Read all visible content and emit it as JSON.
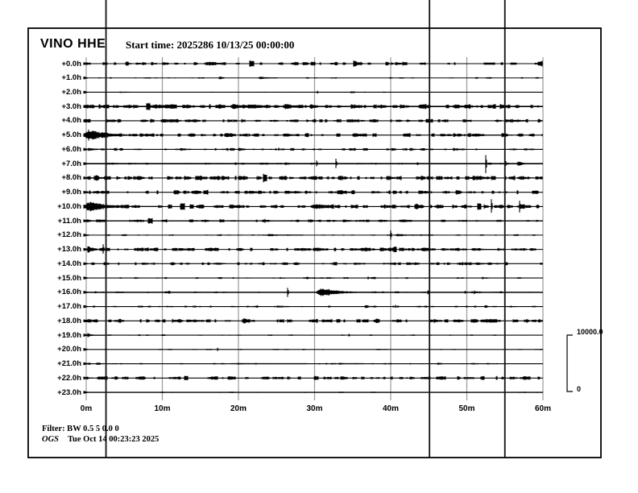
{
  "header": {
    "station": "VINO HHE",
    "start_time_label": "Start time: 2025286 10/13/25 00:00:00"
  },
  "footer": {
    "filter_label": "Filter: BW 0.5 5 0.0 0",
    "agency": "OGS",
    "generated_label": "Tue Oct 14 00:23:23 2025"
  },
  "scalebar": {
    "max_label": "10000.0",
    "min_label": "0"
  },
  "colors": {
    "trace": "#000000",
    "grid": "#999999",
    "marker_line": "#111111",
    "border": "#000000",
    "background": "#ffffff"
  },
  "chart_data": {
    "type": "line",
    "subtype": "helicorder",
    "title": "VINO HHE",
    "start_time": "2025286 10/13/25 00:00:00",
    "x_axis": {
      "unit": "minutes",
      "min": 0,
      "max": 60,
      "tick_step": 10
    },
    "x_tick_labels": [
      "0m",
      "10m",
      "20m",
      "30m",
      "40m",
      "50m",
      "60m"
    ],
    "amplitude_scale": {
      "max": 10000.0,
      "min": 0
    },
    "marker_lines_min": [
      2.6,
      45.1,
      55.0
    ],
    "rows": [
      {
        "label": "+0.0h",
        "noise": 1.6,
        "thick": 1.1,
        "events": [
          {
            "type": "burst",
            "t": 40.0,
            "dur": 0.8,
            "amp": 2.5
          }
        ]
      },
      {
        "label": "+1.0h",
        "noise": 0.7,
        "thick": 1.1,
        "events": [
          {
            "type": "burst",
            "t": 22.6,
            "dur": 2.5,
            "amp": 2.2
          }
        ]
      },
      {
        "label": "+2.0h",
        "noise": 0.5,
        "thick": 1.1,
        "events": [
          {
            "type": "spike",
            "t": 30.4,
            "amp": 2
          }
        ]
      },
      {
        "label": "+3.0h",
        "noise": 2.2,
        "thick": 1.6,
        "events": []
      },
      {
        "label": "+4.0h",
        "noise": 1.6,
        "thick": 1.1,
        "events": [
          {
            "type": "burst",
            "t": 28.9,
            "dur": 1,
            "amp": 2.5
          },
          {
            "type": "burst",
            "t": 42,
            "dur": 1.5,
            "amp": 2
          }
        ]
      },
      {
        "label": "+5.0h",
        "noise": 1.7,
        "thick": 1.1,
        "events": [
          {
            "type": "burst",
            "t": -0.4,
            "dur": 9,
            "amp": 7.5
          },
          {
            "type": "burst",
            "t": 46,
            "dur": 10,
            "amp": 1.8
          }
        ]
      },
      {
        "label": "+6.0h",
        "noise": 1.2,
        "thick": 1.1,
        "events": [
          {
            "type": "burst",
            "t": 0,
            "dur": 4,
            "amp": 2.5
          },
          {
            "type": "spike",
            "t": 25.3,
            "amp": 2
          },
          {
            "type": "burst",
            "t": 48.1,
            "dur": 1.2,
            "amp": 3
          }
        ]
      },
      {
        "label": "+7.0h",
        "noise": 0.9,
        "thick": 1.7,
        "events": [
          {
            "type": "burst",
            "t": 19.5,
            "dur": 1.5,
            "amp": 2
          },
          {
            "type": "burst",
            "t": 26,
            "dur": 2,
            "amp": 2.5
          },
          {
            "type": "spike",
            "t": 30.3,
            "amp": 4
          },
          {
            "type": "spike",
            "t": 32.8,
            "amp": 6
          },
          {
            "type": "burst",
            "t": 43.4,
            "dur": 0.8,
            "amp": 3.5
          },
          {
            "type": "spike",
            "t": 52.5,
            "amp": 12
          },
          {
            "type": "spike",
            "t": 55,
            "amp": 8
          },
          {
            "type": "burst",
            "t": 56.5,
            "dur": 3,
            "amp": 3
          }
        ]
      },
      {
        "label": "+8.0h",
        "noise": 2.0,
        "thick": 1.1,
        "events": [
          {
            "type": "burst",
            "t": 0,
            "dur": 2,
            "amp": 2.5
          },
          {
            "type": "burst",
            "t": 58,
            "dur": 1,
            "amp": 2.5
          }
        ]
      },
      {
        "label": "+9.0h",
        "noise": 1.7,
        "thick": 1.1,
        "events": [
          {
            "type": "burst",
            "t": 0,
            "dur": 1,
            "amp": 2.5
          },
          {
            "type": "burst",
            "t": 37.5,
            "dur": 1.5,
            "amp": 2.5
          }
        ]
      },
      {
        "label": "+10.0h",
        "noise": 1.9,
        "thick": 1.1,
        "events": [
          {
            "type": "burst",
            "t": -0.4,
            "dur": 10,
            "amp": 6.5
          },
          {
            "type": "burst",
            "t": 17,
            "dur": 1,
            "amp": 2.5
          },
          {
            "type": "burst",
            "t": 40,
            "dur": 3,
            "amp": 2
          },
          {
            "type": "spike",
            "t": 53.2,
            "amp": 8
          },
          {
            "type": "spike",
            "t": 56.9,
            "amp": 7
          }
        ]
      },
      {
        "label": "+11.0h",
        "noise": 1.3,
        "thick": 1.4,
        "events": [
          {
            "type": "burst",
            "t": 0,
            "dur": 1.5,
            "amp": 3
          },
          {
            "type": "spike",
            "t": 23.5,
            "amp": 2.5
          }
        ]
      },
      {
        "label": "+12.0h",
        "noise": 0.8,
        "thick": 1.1,
        "events": [
          {
            "type": "burst",
            "t": 23.6,
            "dur": 5,
            "amp": 1.8
          },
          {
            "type": "spike",
            "t": 40,
            "amp": 6
          },
          {
            "type": "burst",
            "t": 40.5,
            "dur": 4.5,
            "amp": 2
          }
        ]
      },
      {
        "label": "+13.0h",
        "noise": 1.7,
        "thick": 1.1,
        "events": [
          {
            "type": "burst",
            "t": 0,
            "dur": 3,
            "amp": 5
          },
          {
            "type": "spike",
            "t": 2.2,
            "amp": 6
          },
          {
            "type": "burst",
            "t": 35,
            "dur": 4,
            "amp": 1.8
          },
          {
            "type": "burst",
            "t": 51.3,
            "dur": 3,
            "amp": 2.2
          }
        ]
      },
      {
        "label": "+14.0h",
        "noise": 1.4,
        "thick": 1.1,
        "events": [
          {
            "type": "burst",
            "t": 17.5,
            "dur": 1,
            "amp": 2.2
          },
          {
            "type": "burst",
            "t": 51,
            "dur": 4,
            "amp": 1.8
          }
        ]
      },
      {
        "label": "+15.0h",
        "noise": 0.8,
        "thick": 1.1,
        "events": [
          {
            "type": "burst",
            "t": 25.4,
            "dur": 0.8,
            "amp": 2
          },
          {
            "type": "burst",
            "t": 28.9,
            "dur": 1.5,
            "amp": 2.2
          },
          {
            "type": "spike",
            "t": 37,
            "amp": 2
          },
          {
            "type": "burst",
            "t": 52,
            "dur": 1,
            "amp": 2
          }
        ]
      },
      {
        "label": "+16.0h",
        "noise": 0.9,
        "thick": 1.5,
        "events": [
          {
            "type": "spike",
            "t": 26.5,
            "amp": 6
          },
          {
            "type": "burst",
            "t": 30.2,
            "dur": 8,
            "amp": 6.5
          },
          {
            "type": "spike",
            "t": 51,
            "amp": 2.5
          }
        ]
      },
      {
        "label": "+17.0h",
        "noise": 0.9,
        "thick": 1.1,
        "events": [
          {
            "type": "spike",
            "t": 40.6,
            "amp": 2
          }
        ]
      },
      {
        "label": "+18.0h",
        "noise": 1.7,
        "thick": 1.1,
        "events": [
          {
            "type": "burst",
            "t": 0,
            "dur": 1,
            "amp": 3
          }
        ]
      },
      {
        "label": "+19.0h",
        "noise": 0.7,
        "thick": 1.1,
        "events": [
          {
            "type": "burst",
            "t": 0,
            "dur": 2.5,
            "amp": 2.8
          }
        ]
      },
      {
        "label": "+20.0h",
        "noise": 0.6,
        "thick": 1.2,
        "events": [
          {
            "type": "spike",
            "t": 17.3,
            "amp": 2
          }
        ]
      },
      {
        "label": "+21.0h",
        "noise": 0.8,
        "thick": 1.1,
        "events": [
          {
            "type": "burst",
            "t": 19,
            "dur": 10,
            "amp": 1.2
          },
          {
            "type": "burst",
            "t": 33,
            "dur": 3.5,
            "amp": 1.3
          }
        ]
      },
      {
        "label": "+22.0h",
        "noise": 1.8,
        "thick": 1.1,
        "events": [
          {
            "type": "burst",
            "t": 0,
            "dur": 1,
            "amp": 3
          }
        ]
      },
      {
        "label": "+23.0h",
        "noise": 0.6,
        "thick": 1.4,
        "events": []
      }
    ]
  }
}
